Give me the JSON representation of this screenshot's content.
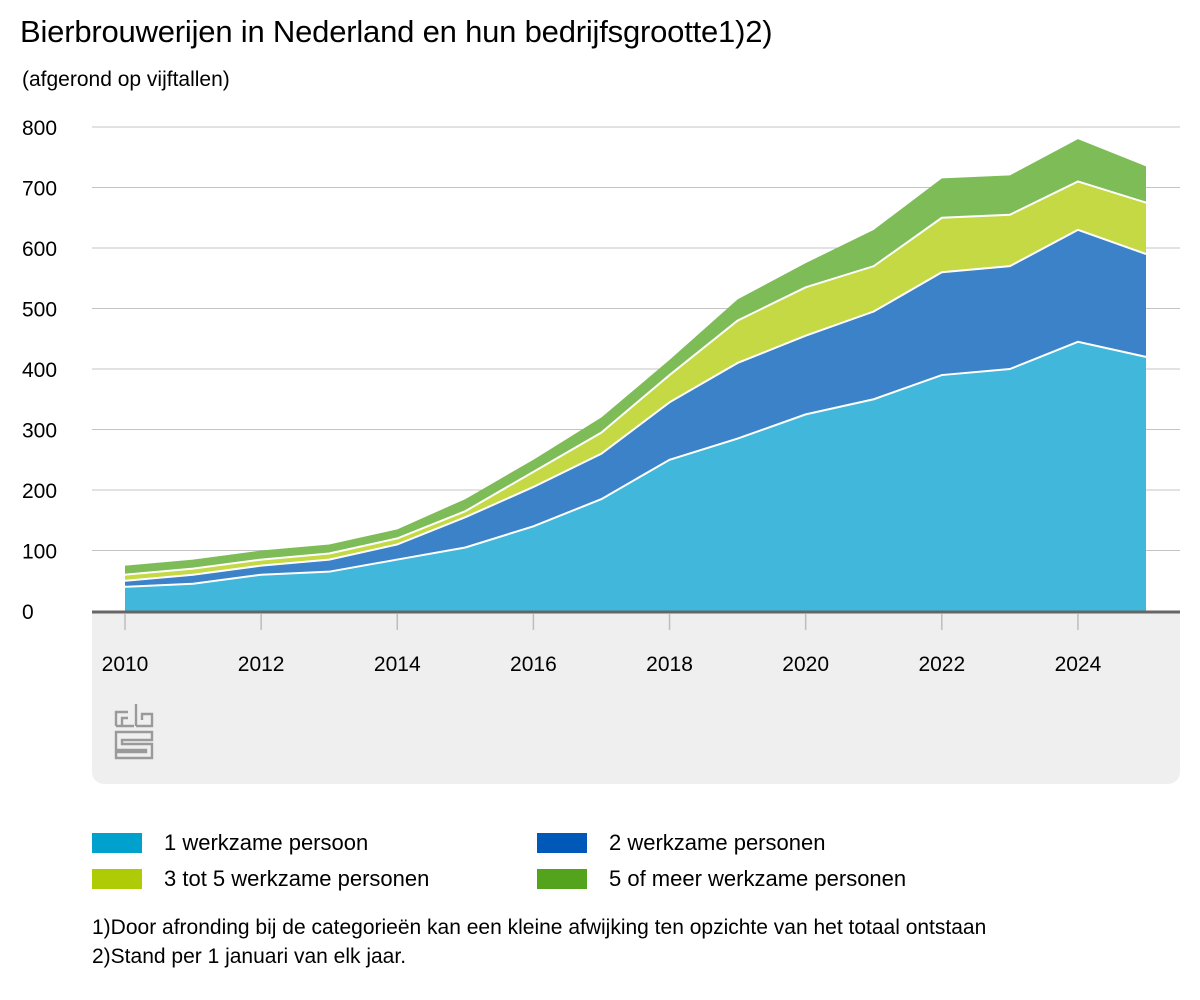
{
  "title": "Bierbrouwerijen in Nederland en hun bedrijfsgrootte1)2)",
  "subtitle": "(afgerond op vijftallen)",
  "logo": {
    "name": "cbs logo",
    "text": "cbs"
  },
  "colors": {
    "gridline": "#c4c4c4",
    "axis": "#666666",
    "band": "#efefef"
  },
  "chart_data": {
    "type": "area",
    "stacked": true,
    "x": [
      2010,
      2011,
      2012,
      2013,
      2014,
      2015,
      2016,
      2017,
      2018,
      2019,
      2020,
      2021,
      2022,
      2023,
      2024,
      2025
    ],
    "xticks": [
      "2010",
      "2012",
      "2014",
      "2016",
      "2018",
      "2020",
      "2022",
      "2024"
    ],
    "xtick_values": [
      2010,
      2012,
      2014,
      2016,
      2018,
      2020,
      2022,
      2024
    ],
    "xlim": [
      2010,
      2025
    ],
    "ylim": [
      0,
      800
    ],
    "yticks": [
      "0",
      "100",
      "200",
      "300",
      "400",
      "500",
      "600",
      "700",
      "800"
    ],
    "ytick_values": [
      0,
      100,
      200,
      300,
      400,
      500,
      600,
      700,
      800
    ],
    "grid": true,
    "legend_position": "bottom",
    "series": [
      {
        "name": "1 werkzame persoon",
        "color": "#00a1cd",
        "fill": "#41b7dc",
        "values": [
          40,
          45,
          60,
          65,
          85,
          105,
          140,
          185,
          250,
          285,
          325,
          350,
          390,
          400,
          445,
          420
        ]
      },
      {
        "name": "2 werkzame personen",
        "color": "#0058b8",
        "fill": "#3c82c8",
        "values": [
          10,
          15,
          15,
          20,
          25,
          50,
          65,
          75,
          95,
          125,
          130,
          145,
          170,
          170,
          185,
          170
        ]
      },
      {
        "name": "3 tot 5 werkzame personen",
        "color": "#afcb05",
        "fill": "#c4d944",
        "values": [
          10,
          10,
          10,
          10,
          10,
          10,
          25,
          35,
          45,
          70,
          80,
          75,
          90,
          85,
          80,
          85
        ]
      },
      {
        "name": "5 of meer werkzame personen",
        "color": "#53a31d",
        "fill": "#7ebc58",
        "values": [
          15,
          15,
          15,
          15,
          15,
          20,
          20,
          25,
          25,
          35,
          40,
          60,
          65,
          65,
          70,
          60
        ]
      }
    ]
  },
  "legend": [
    {
      "label": "1 werkzame persoon",
      "color": "#00a1cd"
    },
    {
      "label": "2 werkzame personen",
      "color": "#0058b8"
    },
    {
      "label": "3 tot 5 werkzame personen",
      "color": "#afcb05"
    },
    {
      "label": "5 of meer werkzame personen",
      "color": "#53a31d"
    }
  ],
  "footnotes": [
    "1)Door afronding bij de categorieën kan een kleine afwijking ten opzichte van het totaal ontstaan",
    "2)Stand per 1 januari van elk jaar."
  ]
}
